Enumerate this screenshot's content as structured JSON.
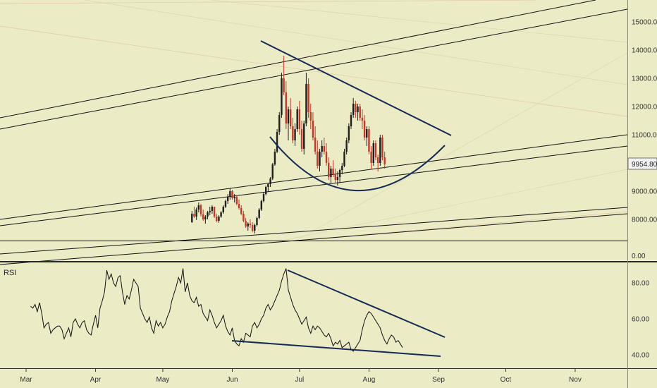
{
  "chart_data": [
    {
      "type": "candlestick",
      "title": "",
      "price_axis": {
        "ticks": [
          "15000.00",
          "14000.00",
          "13000.00",
          "12000.00",
          "11000.00",
          "9000.00",
          "8000.00"
        ],
        "tick_values": [
          15000,
          14000,
          13000,
          12000,
          11000,
          9000,
          8000
        ],
        "lower_label": "0.00",
        "current_price_label": "9954.80",
        "current_price": 9954.8,
        "ylim": [
          7320,
          15850
        ]
      },
      "time_axis": {
        "months": [
          "Mar",
          "Apr",
          "May",
          "Jun",
          "Jul",
          "Aug",
          "Sep",
          "Oct",
          "Nov"
        ],
        "month_day_index": [
          0,
          31,
          61,
          92,
          122,
          153,
          184,
          214,
          245
        ],
        "xlim_days": [
          -12,
          270
        ]
      },
      "colors": {
        "background": "#ebebc5",
        "up": "#1f1f1f",
        "down": "#c0392b",
        "line": "#111111",
        "pattern": "#172a55",
        "grid": "#d8d8b0"
      },
      "candles_note": "daily OHLC estimated from image",
      "candles": {
        "start_day": 74,
        "ohlc": [
          [
            7900,
            8300,
            7880,
            8200
          ],
          [
            8200,
            8450,
            8050,
            8100
          ],
          [
            8100,
            8420,
            7980,
            8350
          ],
          [
            8350,
            8600,
            8250,
            8500
          ],
          [
            8500,
            8550,
            8100,
            8180
          ],
          [
            8180,
            8350,
            7950,
            8000
          ],
          [
            8000,
            8150,
            7850,
            8100
          ],
          [
            8100,
            8300,
            8000,
            8250
          ],
          [
            8250,
            8450,
            8150,
            8300
          ],
          [
            8300,
            8500,
            8200,
            8450
          ],
          [
            8450,
            8400,
            8050,
            8100
          ],
          [
            8100,
            8200,
            7900,
            7950
          ],
          [
            7950,
            8150,
            7880,
            8100
          ],
          [
            8100,
            8300,
            8050,
            8250
          ],
          [
            8250,
            8500,
            8200,
            8450
          ],
          [
            8450,
            8700,
            8400,
            8650
          ],
          [
            8650,
            8900,
            8550,
            8800
          ],
          [
            8800,
            9100,
            8700,
            9000
          ],
          [
            9000,
            9050,
            8700,
            8750
          ],
          [
            8750,
            8900,
            8600,
            8800
          ],
          [
            8800,
            8850,
            8500,
            8550
          ],
          [
            8550,
            8700,
            8350,
            8400
          ],
          [
            8400,
            8500,
            8150,
            8200
          ],
          [
            8200,
            8300,
            7900,
            7950
          ],
          [
            7950,
            8050,
            7700,
            7750
          ],
          [
            7750,
            7900,
            7600,
            7850
          ],
          [
            7850,
            8000,
            7700,
            7800
          ],
          [
            7800,
            7900,
            7550,
            7600
          ],
          [
            7600,
            7850,
            7500,
            7800
          ],
          [
            7800,
            8100,
            7750,
            8050
          ],
          [
            8050,
            8400,
            8000,
            8350
          ],
          [
            8350,
            8700,
            8300,
            8650
          ],
          [
            8650,
            8950,
            8600,
            8900
          ],
          [
            8900,
            9200,
            8850,
            9150
          ],
          [
            9150,
            9300,
            9000,
            9250
          ],
          [
            9250,
            9500,
            9150,
            9450
          ],
          [
            9450,
            10000,
            9400,
            9950
          ],
          [
            9950,
            10500,
            9900,
            10400
          ],
          [
            10400,
            11200,
            10350,
            11100
          ],
          [
            11100,
            11800,
            11000,
            11700
          ],
          [
            11700,
            13200,
            11600,
            13000
          ],
          [
            13000,
            13800,
            12400,
            12500
          ],
          [
            12500,
            12900,
            11200,
            11400
          ],
          [
            11400,
            12000,
            10800,
            11900
          ],
          [
            11900,
            12300,
            11200,
            11300
          ],
          [
            11300,
            11600,
            10700,
            10800
          ],
          [
            10800,
            11400,
            10600,
            11200
          ],
          [
            11200,
            12000,
            11100,
            11900
          ],
          [
            11900,
            12200,
            11000,
            11200
          ],
          [
            11200,
            11500,
            10400,
            10500
          ],
          [
            10500,
            11500,
            10300,
            11400
          ],
          [
            11400,
            13200,
            11300,
            12800
          ],
          [
            12800,
            13000,
            11600,
            11800
          ],
          [
            11800,
            12100,
            11200,
            11500
          ],
          [
            11500,
            11800,
            10800,
            10900
          ],
          [
            10900,
            11300,
            10300,
            10400
          ],
          [
            10400,
            10800,
            9800,
            9900
          ],
          [
            9900,
            10500,
            9700,
            10400
          ],
          [
            10400,
            10800,
            10200,
            10600
          ],
          [
            10600,
            10900,
            10300,
            10400
          ],
          [
            10400,
            10700,
            9900,
            10000
          ],
          [
            10000,
            10200,
            9400,
            9500
          ],
          [
            9500,
            9900,
            9300,
            9800
          ],
          [
            9800,
            10100,
            9500,
            9600
          ],
          [
            9600,
            9800,
            9300,
            9400
          ],
          [
            9400,
            9700,
            9200,
            9500
          ],
          [
            9500,
            9800,
            9300,
            9750
          ],
          [
            9750,
            10000,
            9600,
            9900
          ],
          [
            9900,
            10500,
            9850,
            10400
          ],
          [
            10400,
            10900,
            10300,
            10800
          ],
          [
            10800,
            11400,
            10700,
            11300
          ],
          [
            11300,
            11800,
            11200,
            11700
          ],
          [
            11700,
            12300,
            11600,
            12100
          ],
          [
            12100,
            12200,
            11600,
            11800
          ],
          [
            11800,
            12100,
            11500,
            12000
          ],
          [
            12000,
            12100,
            11500,
            11600
          ],
          [
            11600,
            11900,
            11200,
            11500
          ],
          [
            11500,
            11700,
            10800,
            10900
          ],
          [
            10900,
            11300,
            10600,
            11200
          ],
          [
            11200,
            11300,
            10300,
            10400
          ],
          [
            10400,
            10600,
            9800,
            10000
          ],
          [
            10000,
            10800,
            9900,
            10700
          ],
          [
            10700,
            10800,
            10100,
            10200
          ],
          [
            10200,
            10300,
            9700,
            10000
          ],
          [
            10000,
            11000,
            9900,
            10900
          ],
          [
            10900,
            11000,
            10100,
            10200
          ],
          [
            10200,
            10400,
            9800,
            9955
          ]
        ]
      }
    },
    {
      "type": "line",
      "title": "RSI",
      "y_ticks": [
        "80.00",
        "60.00",
        "40.00"
      ],
      "y_tick_values": [
        80,
        60,
        40
      ],
      "ylim": [
        34,
        91
      ],
      "start_day": 2,
      "values": [
        67,
        66,
        68,
        64,
        69,
        63,
        55,
        57,
        58,
        52,
        54,
        55,
        56,
        56,
        54,
        49,
        52,
        55,
        50,
        58,
        60,
        57,
        55,
        58,
        59,
        54,
        52,
        51,
        57,
        62,
        55,
        66,
        70,
        75,
        87,
        82,
        85,
        80,
        78,
        83,
        84,
        75,
        68,
        73,
        71,
        76,
        82,
        80,
        78,
        66,
        63,
        60,
        58,
        61,
        55,
        52,
        59,
        56,
        58,
        55,
        57,
        61,
        64,
        70,
        74,
        78,
        83,
        80,
        88,
        75,
        80,
        73,
        70,
        69,
        72,
        67,
        68,
        63,
        61,
        59,
        65,
        62,
        58,
        55,
        57,
        59,
        62,
        56,
        53,
        51,
        55,
        48,
        46,
        45,
        49,
        47,
        52,
        51,
        50,
        56,
        58,
        55,
        57,
        60,
        62,
        66,
        68,
        65,
        67,
        70,
        73,
        76,
        81,
        85,
        88,
        76,
        72,
        68,
        65,
        63,
        60,
        57,
        59,
        61,
        55,
        52,
        56,
        54,
        56,
        55,
        53,
        51,
        50,
        52,
        49,
        45,
        47,
        46,
        48,
        44,
        45,
        46,
        47,
        43,
        42,
        44,
        46,
        48,
        54,
        59,
        62,
        64,
        63,
        61,
        59,
        57,
        55,
        51,
        48,
        46,
        49,
        51,
        50,
        47,
        48,
        46,
        44
      ]
    }
  ]
}
